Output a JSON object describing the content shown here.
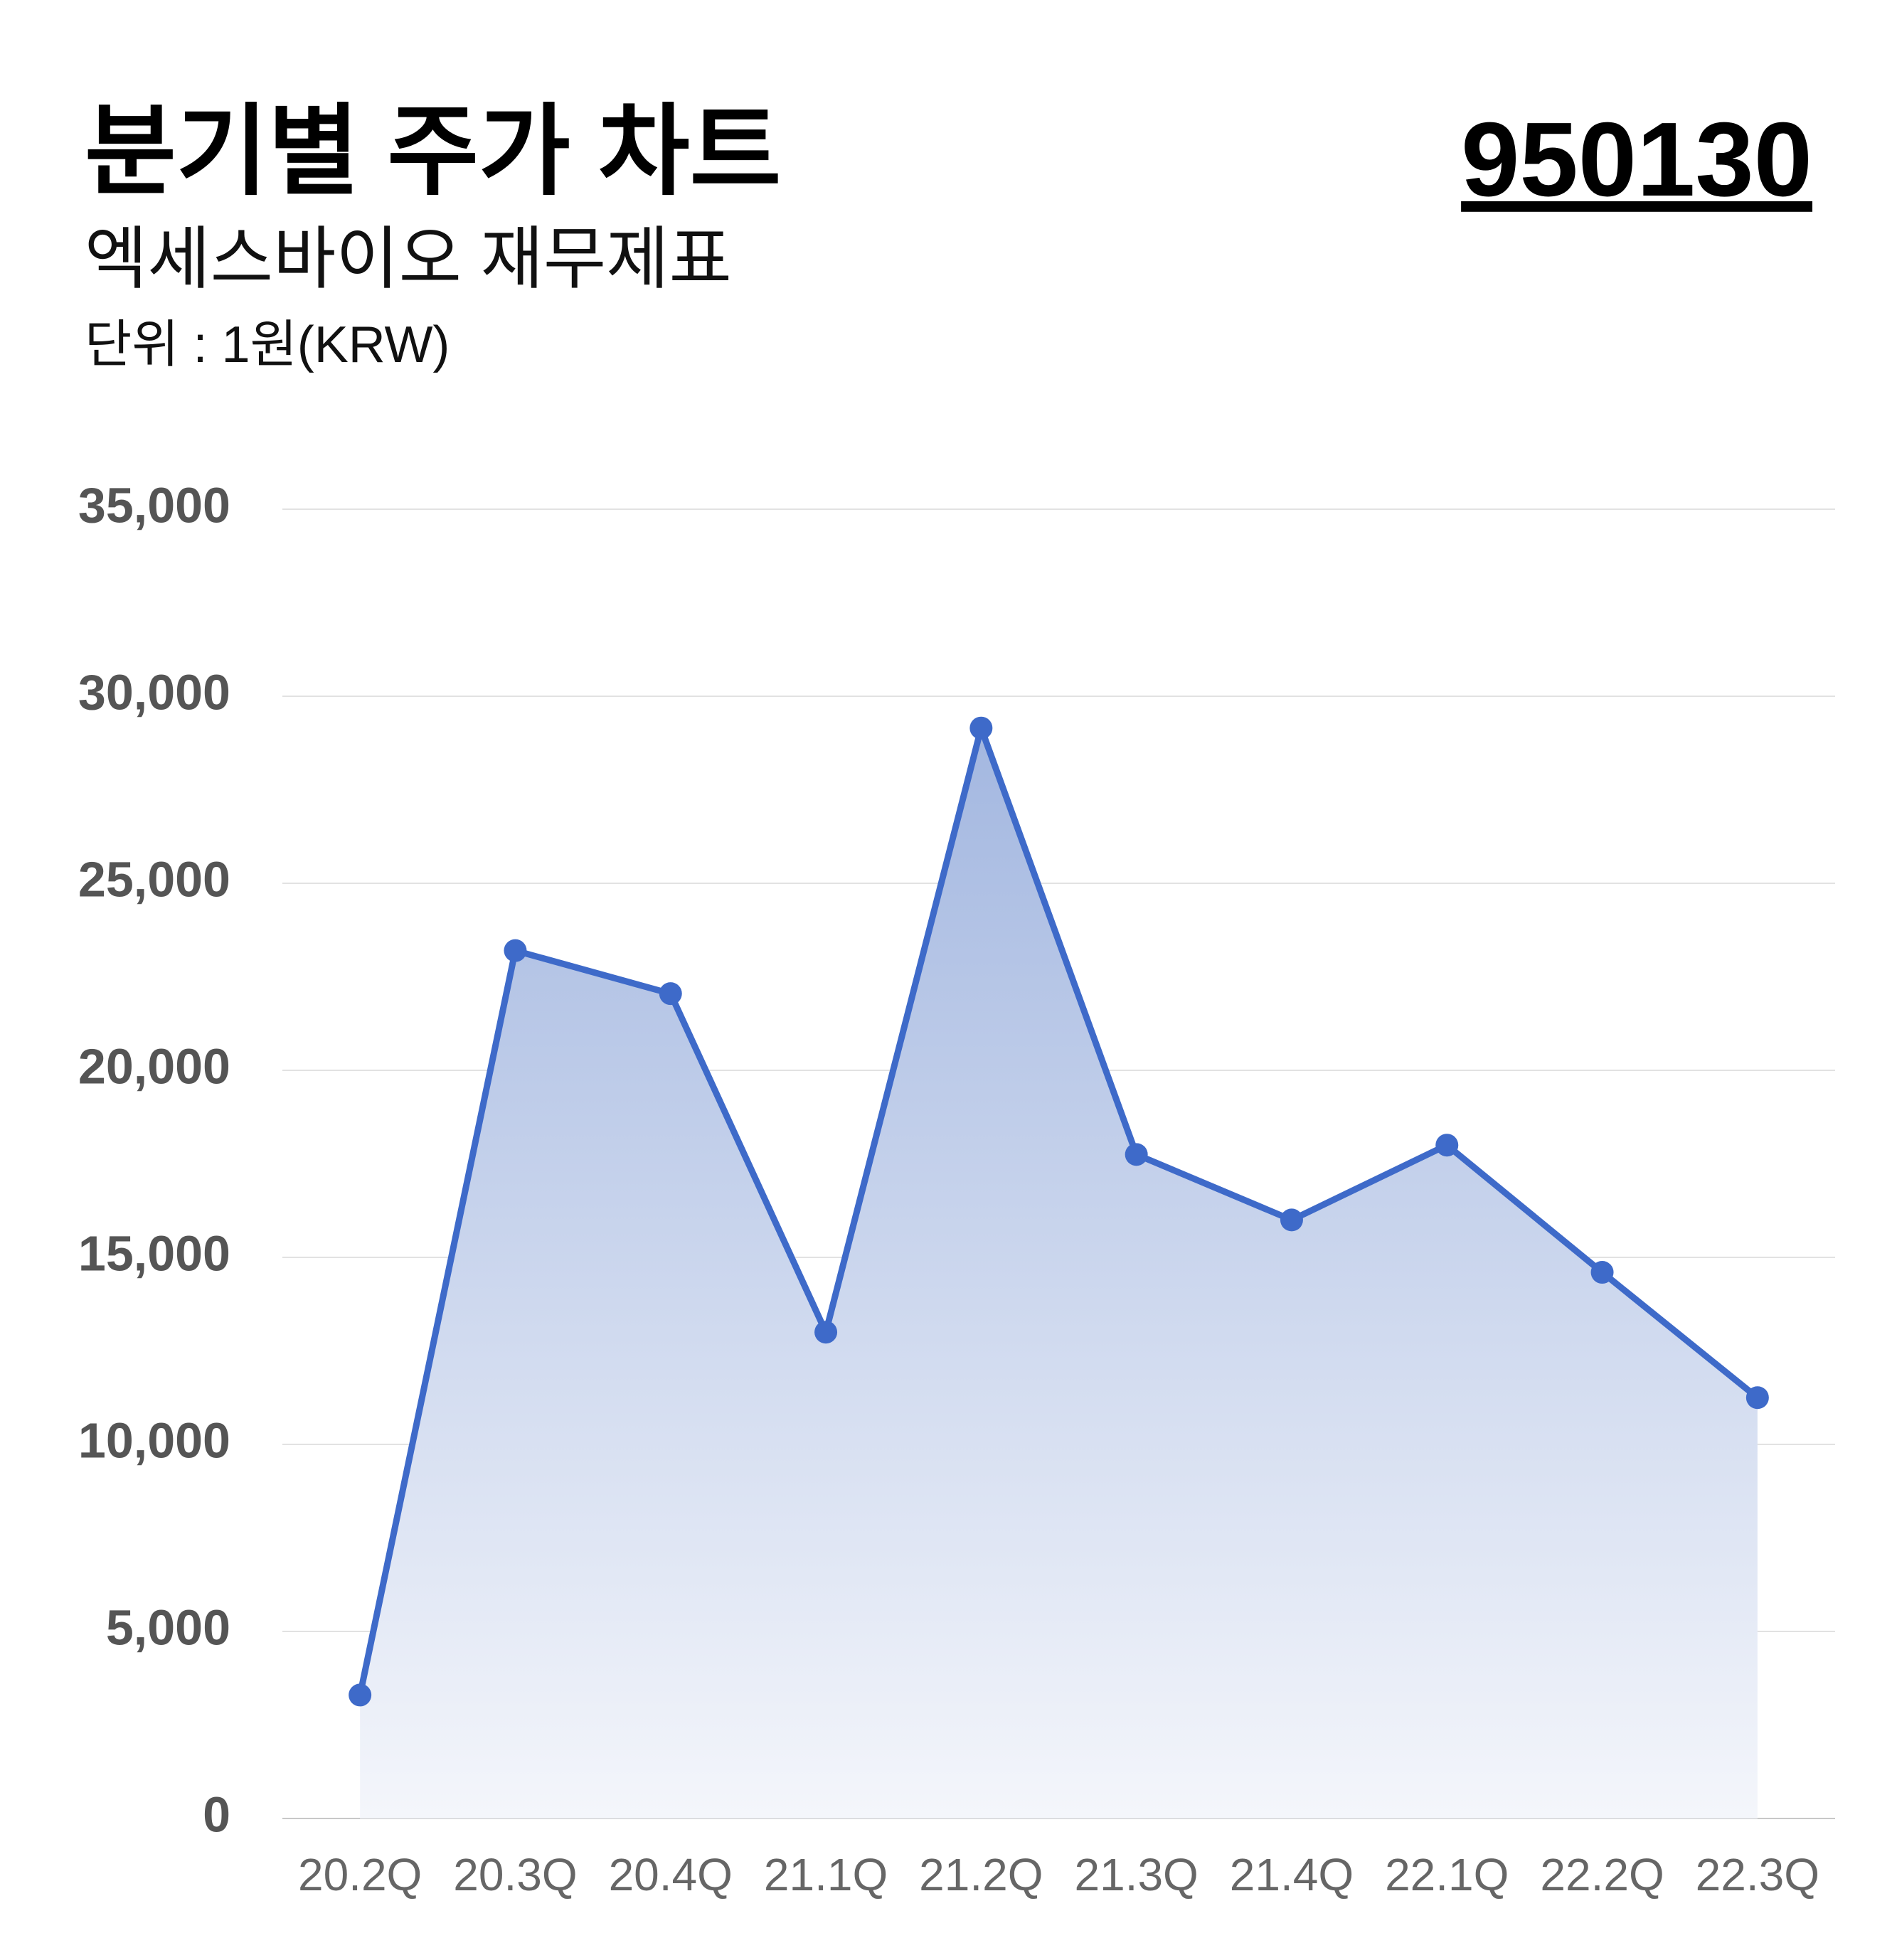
{
  "chart_data": {
    "type": "area",
    "title": "분기별 주가 차트",
    "subtitle": "엑세스바이오 재무제표",
    "unit_note": "단위 : 1원(KRW)",
    "code": "950130",
    "categories": [
      "20.2Q",
      "20.3Q",
      "20.4Q",
      "21.1Q",
      "21.2Q",
      "21.3Q",
      "21.4Q",
      "22.1Q",
      "22.2Q",
      "22.3Q"
    ],
    "values": [
      3300,
      23200,
      22050,
      13000,
      29150,
      17750,
      16000,
      18000,
      14600,
      11250
    ],
    "color": "#3e6ac9",
    "ylim": [
      0,
      35000
    ],
    "yticks": [
      0,
      {
        "value": 5000,
        "label": "5,000"
      },
      {
        "value": 10000,
        "label": "10,000"
      },
      {
        "value": 15000,
        "label": "15,000"
      },
      {
        "value": 20000,
        "label": "20,000"
      },
      {
        "value": 25000,
        "label": "25,000"
      },
      {
        "value": 30000,
        "label": "30,000"
      },
      {
        "value": 35000,
        "label": "35,000"
      }
    ],
    "grid": true
  }
}
